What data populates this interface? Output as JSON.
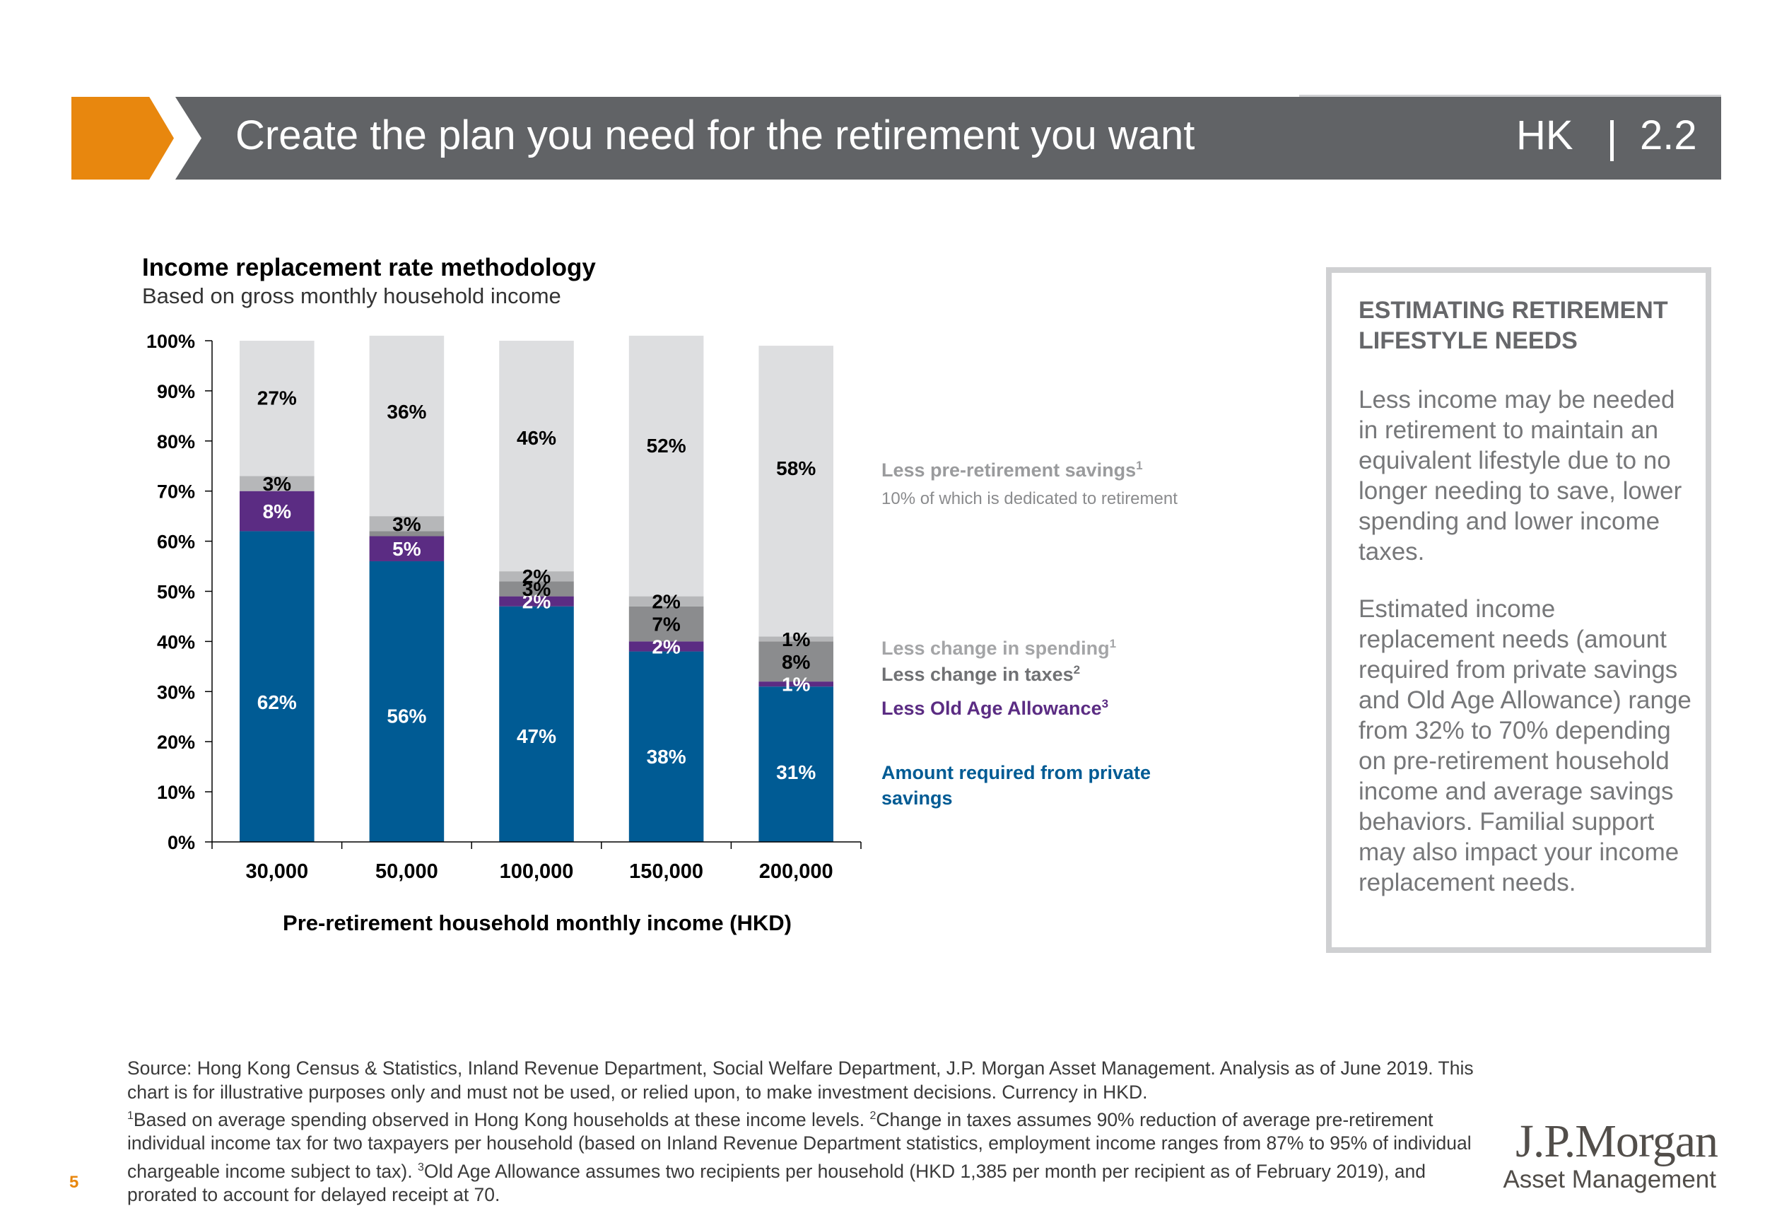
{
  "header": {
    "title": "Create the plan you need for the retirement you want",
    "region_code": "HK",
    "section_number": "2.2",
    "accent_color": "#e8870e",
    "band_color": "#616366"
  },
  "chart_data": {
    "type": "bar",
    "stacked": true,
    "title": "Income replacement rate methodology",
    "subtitle": "Based on gross monthly household income",
    "xlabel": "Pre-retirement household monthly income (HKD)",
    "ylabel": "",
    "ylim": [
      0,
      100
    ],
    "yticks": [
      "0%",
      "10%",
      "20%",
      "30%",
      "40%",
      "50%",
      "60%",
      "70%",
      "80%",
      "90%",
      "100%"
    ],
    "categories": [
      "30,000",
      "50,000",
      "100,000",
      "150,000",
      "200,000"
    ],
    "series": [
      {
        "name": "Amount required from private savings",
        "color": "#005b94",
        "values": [
          62,
          56,
          47,
          38,
          31
        ],
        "labels": [
          "62%",
          "56%",
          "47%",
          "38%",
          "31%"
        ]
      },
      {
        "name": "Less Old Age Allowance",
        "color": "#5b2c83",
        "values": [
          8,
          5,
          2,
          2,
          1
        ],
        "labels": [
          "8%",
          "5%",
          "2%",
          "2%",
          "1%"
        ]
      },
      {
        "name": "Less change in taxes",
        "color": "#8b8c8e",
        "values": [
          0,
          1,
          3,
          7,
          8
        ],
        "labels": [
          "",
          "",
          "3%",
          "7%",
          "8%"
        ]
      },
      {
        "name": "Less change in spending",
        "color": "#b6b7b9",
        "values": [
          3,
          3,
          2,
          2,
          1
        ],
        "labels": [
          "3%",
          "3%",
          "2%",
          "2%",
          "1%"
        ]
      },
      {
        "name": "Less pre-retirement savings",
        "color": "#dddee0",
        "values": [
          27,
          36,
          46,
          52,
          58
        ],
        "labels": [
          "27%",
          "36%",
          "46%",
          "52%",
          "58%"
        ]
      }
    ],
    "grid": false,
    "legend_position": "right"
  },
  "legend": {
    "savings": "Less pre-retirement savings",
    "savings_sup": "1",
    "savings_note": "10% of which is dedicated to retirement",
    "spending": "Less change in spending",
    "spending_sup": "1",
    "taxes": "Less change in taxes",
    "taxes_sup": "2",
    "oaa": "Less Old Age Allowance",
    "oaa_sup": "3",
    "private": "Amount required from private savings"
  },
  "side_box": {
    "heading": "ESTIMATING RETIREMENT LIFESTYLE NEEDS",
    "paragraph_1": "Less income may be needed in retirement to maintain an equivalent lifestyle due to no longer needing to save, lower spending and lower income taxes.",
    "paragraph_2": "Estimated income replacement needs (amount required from private savings and Old Age Allowance) range from 32% to 70% depending on pre-retirement household income and average savings behaviors. Familial support may also impact your income replacement needs."
  },
  "footer": {
    "source": "Source: Hong Kong Census & Statistics, Inland Revenue Department, Social Welfare Department, J.P. Morgan Asset Management. Analysis as of June 2019. This chart is for illustrative purposes only and must not be used, or relied upon, to make investment decisions. Currency in HKD.",
    "note_1_sup": "1",
    "note_1": "Based on average spending observed in Hong Kong households at these income levels.",
    "note_2_sup": "2",
    "note_2": "Change in taxes assumes 90% reduction of average pre-retirement individual income tax for two taxpayers per household (based on Inland Revenue Department statistics, employment income ranges from 87% to 95% of individual chargeable income subject to tax).",
    "note_3_sup": "3",
    "note_3": "Old Age Allowance assumes two recipients per household (HKD 1,385 per month per recipient as of February 2019), and prorated to account for delayed receipt at 70.",
    "page_number": "5"
  },
  "logo": {
    "main": "J.P.Morgan",
    "sub": "Asset Management"
  }
}
